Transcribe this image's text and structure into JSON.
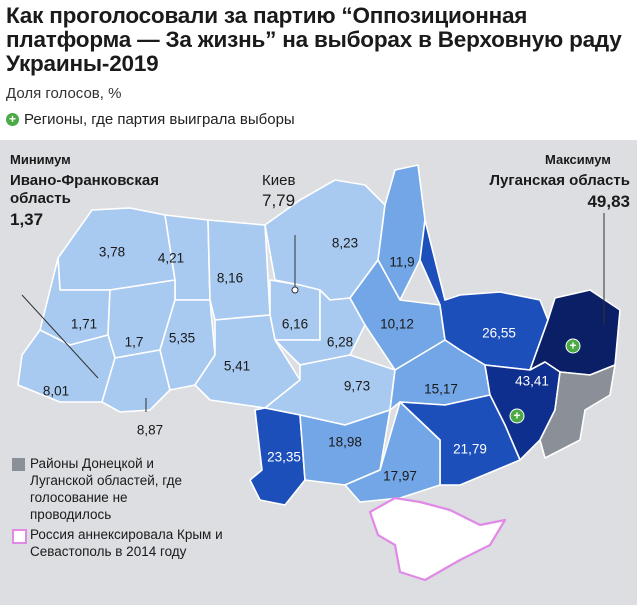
{
  "title": "Как проголосовали за партию “Оппозиционная платформа — За жизнь” на выборах в Верховную раду Украины-2019",
  "subtitle": "Доля голосов, %",
  "legend_top": {
    "icon": "plus-circle-icon",
    "label": "Регионы, где партия выиграла выборы"
  },
  "min_callout": {
    "caption": "Минимум",
    "region": "Ивано-Франковская область",
    "value": "1,37"
  },
  "max_callout": {
    "caption": "Максимум",
    "region": "Луганская область",
    "value": "49,83"
  },
  "kiev_callout": {
    "name": "Киев",
    "value": "7,79"
  },
  "regions": [
    {
      "value": "3,78"
    },
    {
      "value": "4,21"
    },
    {
      "value": "8,16"
    },
    {
      "value": "8,23"
    },
    {
      "value": "11,9"
    },
    {
      "value": "1,71"
    },
    {
      "value": "1,7"
    },
    {
      "value": "5,35"
    },
    {
      "value": "6,16"
    },
    {
      "value": "10,12"
    },
    {
      "value": "26,55"
    },
    {
      "value": "6,28"
    },
    {
      "value": "5,41"
    },
    {
      "value": "9,73"
    },
    {
      "value": "15,17"
    },
    {
      "value": "43,41"
    },
    {
      "value": "8,01"
    },
    {
      "value": "8,87"
    },
    {
      "value": "23,35"
    },
    {
      "value": "18,98"
    },
    {
      "value": "21,79"
    },
    {
      "value": "17,97"
    }
  ],
  "legend_bottom": {
    "gray": "Районы Донецкой и Луганской областей, где голосование не проводилось",
    "crimea": "Россия аннексировала Крым и Севастополь в 2014 году"
  },
  "colors": {
    "level1": "#a8c9f0",
    "level2": "#73a6e6",
    "level3": "#4378d6",
    "level4": "#1d4fbb",
    "level5": "#0e2f8e",
    "level6": "#0b1f66",
    "no_vote": "#8a8f98",
    "crimea_border": "#e08ae6",
    "win_marker": "#4caa45"
  }
}
